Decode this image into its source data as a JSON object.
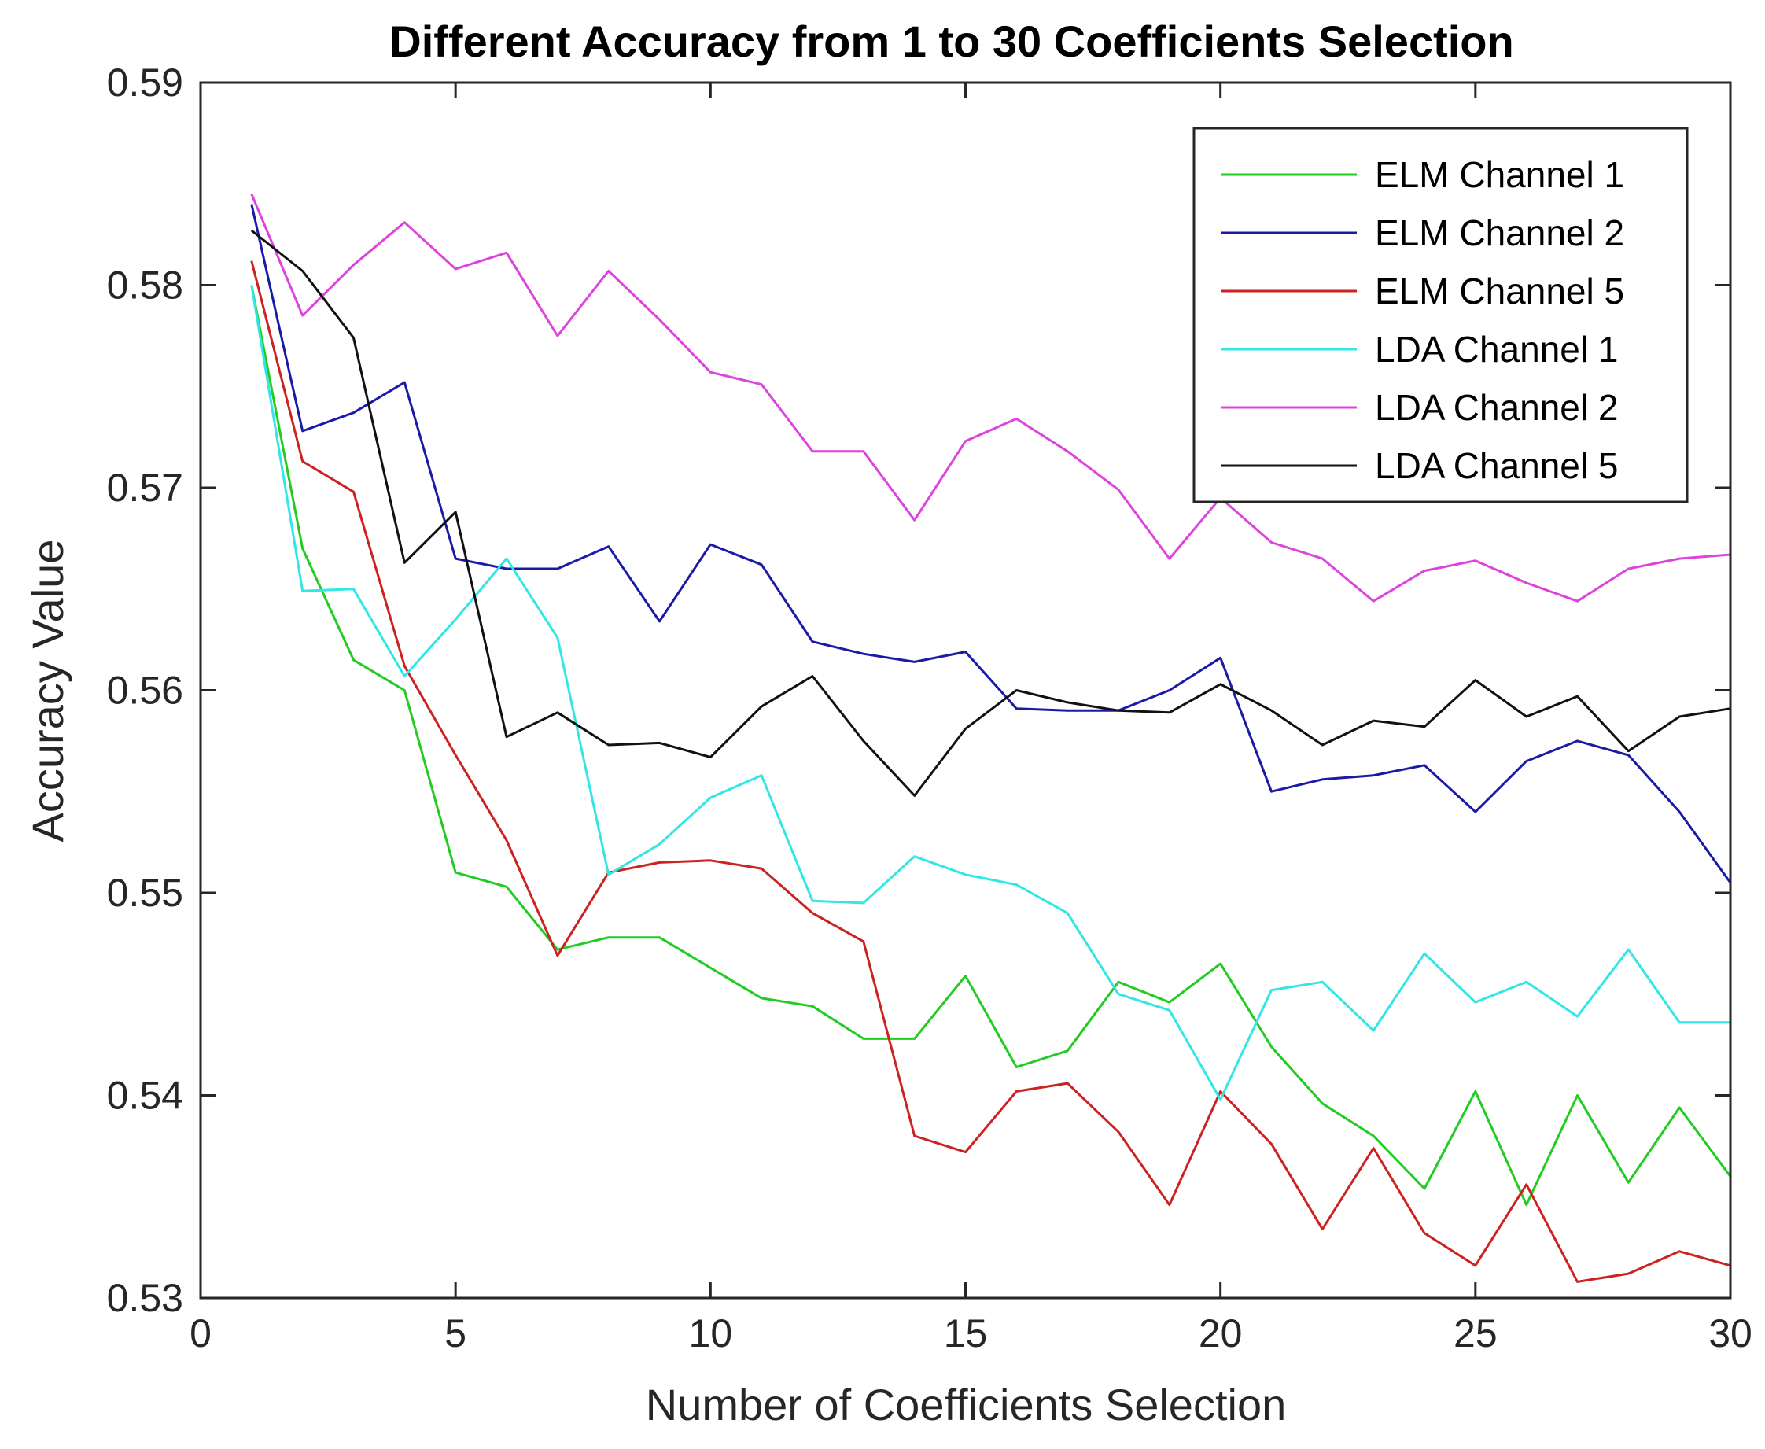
{
  "chart_data": {
    "type": "line",
    "title": "Different Accuracy from 1 to 30 Coefficients Selection",
    "xlabel": "Number of Coefficients Selection",
    "ylabel": "Accuracy Value",
    "xlim": [
      0,
      30
    ],
    "ylim": [
      0.53,
      0.59
    ],
    "xticks": [
      0,
      5,
      10,
      15,
      20,
      25,
      30
    ],
    "yticks": [
      0.53,
      0.54,
      0.55,
      0.56,
      0.57,
      0.58,
      0.59
    ],
    "xtick_labels": [
      "0",
      "5",
      "10",
      "15",
      "20",
      "25",
      "30"
    ],
    "ytick_labels": [
      "0.53",
      "0.54",
      "0.55",
      "0.56",
      "0.57",
      "0.58",
      "0.59"
    ],
    "grid": false,
    "legend_position": "top-right",
    "x": [
      1,
      2,
      3,
      4,
      5,
      6,
      7,
      8,
      9,
      10,
      11,
      12,
      13,
      14,
      15,
      16,
      17,
      18,
      19,
      20,
      21,
      22,
      23,
      24,
      25,
      26,
      27,
      28,
      29,
      30
    ],
    "series": [
      {
        "name": "ELM Channel 1",
        "color": "#22cc22",
        "values": [
          0.58,
          0.567,
          0.5615,
          0.56,
          0.551,
          0.5503,
          0.5472,
          0.5478,
          0.5478,
          0.5463,
          0.5448,
          0.5444,
          0.5428,
          0.5428,
          0.5459,
          0.5414,
          0.5422,
          0.5456,
          0.5446,
          0.5465,
          0.5424,
          0.5396,
          0.538,
          0.5354,
          0.5402,
          0.5346,
          0.54,
          0.5357,
          0.5394,
          0.536
        ]
      },
      {
        "name": "ELM Channel 2",
        "color": "#1a1aa6",
        "values": [
          0.584,
          0.5728,
          0.5737,
          0.5752,
          0.5665,
          0.566,
          0.566,
          0.5671,
          0.5634,
          0.5672,
          0.5662,
          0.5624,
          0.5618,
          0.5614,
          0.5619,
          0.5591,
          0.559,
          0.559,
          0.56,
          0.5616,
          0.555,
          0.5556,
          0.5558,
          0.5563,
          0.554,
          0.5565,
          0.5575,
          0.5568,
          0.554,
          0.5505
        ]
      },
      {
        "name": "ELM Channel 5",
        "color": "#cc2222",
        "values": [
          0.5812,
          0.5713,
          0.5698,
          0.5612,
          0.5568,
          0.5526,
          0.5469,
          0.551,
          0.5515,
          0.5516,
          0.5512,
          0.549,
          0.5476,
          0.538,
          0.5372,
          0.5402,
          0.5406,
          0.5382,
          0.5346,
          0.5402,
          0.5376,
          0.5334,
          0.5374,
          0.5332,
          0.5316,
          0.5356,
          0.5308,
          0.5312,
          0.5323,
          0.5316
        ]
      },
      {
        "name": "LDA Channel 1",
        "color": "#33e6e6",
        "values": [
          0.58,
          0.5649,
          0.565,
          0.5607,
          0.5635,
          0.5665,
          0.5626,
          0.5509,
          0.5524,
          0.5547,
          0.5558,
          0.5496,
          0.5495,
          0.5518,
          0.5509,
          0.5504,
          0.549,
          0.545,
          0.5442,
          0.5398,
          0.5452,
          0.5456,
          0.5432,
          0.547,
          0.5446,
          0.5456,
          0.5439,
          0.5472,
          0.5436,
          0.5436
        ]
      },
      {
        "name": "LDA Channel 2",
        "color": "#dd44dd",
        "values": [
          0.5845,
          0.5785,
          0.581,
          0.5831,
          0.5808,
          0.5816,
          0.5775,
          0.5807,
          0.5783,
          0.5757,
          0.5751,
          0.5718,
          0.5718,
          0.5684,
          0.5723,
          0.5734,
          0.5718,
          0.5699,
          0.5665,
          0.5695,
          0.5673,
          0.5665,
          0.5644,
          0.5659,
          0.5664,
          0.5653,
          0.5644,
          0.566,
          0.5665,
          0.5667
        ]
      },
      {
        "name": "LDA Channel 5",
        "color": "#111111",
        "values": [
          0.5827,
          0.5807,
          0.5774,
          0.5663,
          0.5688,
          0.5577,
          0.5589,
          0.5573,
          0.5574,
          0.5567,
          0.5592,
          0.5607,
          0.5575,
          0.5548,
          0.5581,
          0.56,
          0.5594,
          0.559,
          0.5589,
          0.5603,
          0.559,
          0.5573,
          0.5585,
          0.5582,
          0.5605,
          0.5587,
          0.5597,
          0.557,
          0.5587,
          0.5591
        ]
      }
    ]
  }
}
